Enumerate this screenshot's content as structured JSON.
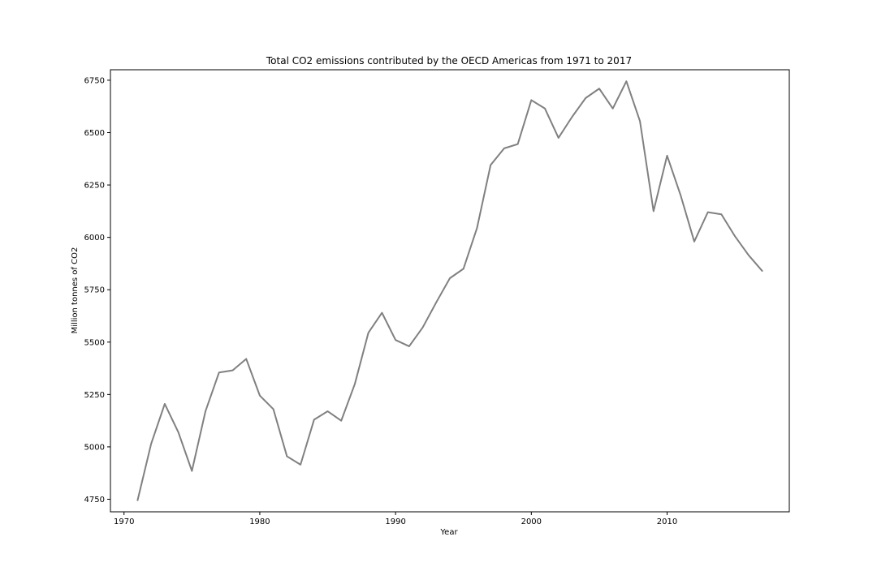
{
  "chart_data": {
    "type": "line",
    "title": "Total CO2 emissions contributed by the OECD Americas from 1971 to 2017",
    "xlabel": "Year",
    "ylabel": "Million tonnes of CO2",
    "xlim": [
      1969,
      2019
    ],
    "ylim": [
      4690,
      6800
    ],
    "xticks": [
      1970,
      1980,
      1990,
      2000,
      2010
    ],
    "yticks": [
      4750,
      5000,
      5250,
      5500,
      5750,
      6000,
      6250,
      6500,
      6750
    ],
    "grid": false,
    "line_color": "#808080",
    "series": [
      {
        "x": [
          1971,
          1972,
          1973,
          1974,
          1975,
          1976,
          1977,
          1978,
          1979,
          1980,
          1981,
          1982,
          1983,
          1984,
          1985,
          1986,
          1987,
          1988,
          1989,
          1990,
          1991,
          1992,
          1993,
          1994,
          1995,
          1996,
          1997,
          1998,
          1999,
          2000,
          2001,
          2002,
          2003,
          2004,
          2005,
          2006,
          2007,
          2008,
          2009,
          2010,
          2011,
          2012,
          2013,
          2014,
          2015,
          2016,
          2017
        ],
        "y": [
          4745,
          5015,
          5205,
          5070,
          4885,
          5170,
          5355,
          5365,
          5420,
          5245,
          5180,
          4955,
          4915,
          5130,
          5170,
          5125,
          5300,
          5545,
          5640,
          5510,
          5480,
          5570,
          5690,
          5805,
          5850,
          6045,
          6345,
          6425,
          6445,
          6655,
          6615,
          6475,
          6575,
          6665,
          6710,
          6615,
          6745,
          6555,
          6125,
          6390,
          6200,
          5980,
          6120,
          6110,
          6005,
          5915,
          5840
        ]
      }
    ]
  }
}
